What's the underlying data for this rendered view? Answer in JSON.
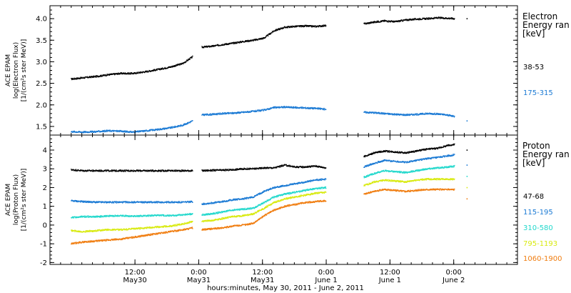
{
  "chart_data": [
    {
      "type": "scatter",
      "panel": "electron",
      "ylabel_lines": [
        "ACE EPAM",
        "log(Electron Flux)",
        "[1/(cm²s ster MeV)]"
      ],
      "yticks": [
        "1.5",
        "2.0",
        "2.5",
        "3.0",
        "3.5",
        "4.0"
      ],
      "ylim": [
        1.3,
        4.3
      ],
      "legend": {
        "title_lines": [
          "Electron",
          "Energy ran",
          "[keV]"
        ],
        "placement": "right"
      },
      "series": [
        {
          "name": "38-53",
          "color": "#000000",
          "segments": [
            {
              "x": [
                0,
                2.3,
                4.7,
                7.0,
                9.3,
                11.7,
                14.0,
                16.3,
                18.7,
                21.0,
                22.9
              ],
              "y": [
                2.6,
                2.63,
                2.66,
                2.7,
                2.73,
                2.73,
                2.77,
                2.82,
                2.88,
                2.96,
                3.12
              ]
            },
            {
              "x": [
                24.6,
                26.5,
                28.5,
                30.4,
                32.4,
                34.3,
                36.3,
                38.2,
                40.2,
                42.1,
                44.1,
                46.0,
                48.0
              ],
              "y": [
                3.34,
                3.36,
                3.4,
                3.43,
                3.47,
                3.5,
                3.55,
                3.72,
                3.8,
                3.82,
                3.83,
                3.82,
                3.84
              ]
            },
            {
              "x": [
                55.1,
                57.0,
                59.0,
                61.0,
                63.0,
                65.0,
                67.0,
                69.0,
                71.0,
                72.2
              ],
              "y": [
                3.88,
                3.92,
                3.95,
                3.93,
                3.97,
                3.99,
                4.0,
                4.02,
                4.01,
                4.0
              ]
            },
            {
              "x": [
                74.5
              ],
              "y": [
                4.0
              ]
            }
          ]
        },
        {
          "name": "175-315",
          "color": "#1b7ad4",
          "segments": [
            {
              "x": [
                0,
                2.3,
                4.7,
                7.0,
                9.3,
                11.7,
                14.0,
                16.3,
                18.7,
                21.0,
                22.9
              ],
              "y": [
                1.38,
                1.37,
                1.38,
                1.4,
                1.39,
                1.37,
                1.4,
                1.43,
                1.47,
                1.53,
                1.63
              ]
            },
            {
              "x": [
                24.6,
                26.5,
                28.5,
                30.4,
                32.4,
                34.3,
                36.3,
                38.2,
                40.2,
                42.1,
                44.1,
                46.0,
                48.0
              ],
              "y": [
                1.77,
                1.78,
                1.8,
                1.81,
                1.83,
                1.85,
                1.88,
                1.94,
                1.95,
                1.94,
                1.93,
                1.92,
                1.9
              ]
            },
            {
              "x": [
                55.1,
                57.0,
                59.0,
                61.0,
                63.0,
                65.0,
                67.0,
                69.0,
                71.0,
                72.2
              ],
              "y": [
                1.83,
                1.82,
                1.8,
                1.78,
                1.77,
                1.78,
                1.8,
                1.79,
                1.76,
                1.73
              ]
            },
            {
              "x": [
                74.5
              ],
              "y": [
                1.63
              ]
            }
          ]
        }
      ]
    },
    {
      "type": "scatter",
      "panel": "proton",
      "ylabel_lines": [
        "ACE EPAM",
        "log(Proton Flux)",
        "[1/(cm²s ster MeV)]"
      ],
      "yticks": [
        "-2",
        "-1",
        "0",
        "1",
        "2",
        "3",
        "4"
      ],
      "ylim": [
        -2.1,
        4.8
      ],
      "legend": {
        "title_lines": [
          "Proton",
          "Energy ran",
          "[keV]"
        ],
        "placement": "right"
      },
      "series": [
        {
          "name": "47-68",
          "color": "#000000",
          "segments": [
            {
              "x": [
                0,
                2.3,
                4.7,
                7.0,
                9.3,
                11.7,
                14.0,
                16.3,
                18.7,
                21.0,
                22.9
              ],
              "y": [
                2.95,
                2.9,
                2.9,
                2.9,
                2.9,
                2.9,
                2.9,
                2.9,
                2.9,
                2.9,
                2.9
              ]
            },
            {
              "x": [
                24.6,
                26.5,
                28.5,
                30.4,
                32.4,
                34.3,
                36.3,
                38.2,
                40.2,
                42.1,
                44.1,
                46.0,
                48.0
              ],
              "y": [
                2.9,
                2.92,
                2.93,
                2.95,
                3.0,
                3.0,
                3.05,
                3.05,
                3.2,
                3.1,
                3.1,
                3.15,
                3.05
              ]
            },
            {
              "x": [
                55.1,
                57.0,
                59.0,
                61.0,
                63.0,
                65.0,
                67.0,
                69.0,
                71.0,
                72.2
              ],
              "y": [
                3.65,
                3.85,
                3.95,
                3.9,
                3.85,
                3.95,
                4.05,
                4.1,
                4.25,
                4.3
              ]
            },
            {
              "x": [
                74.5
              ],
              "y": [
                4.0
              ]
            }
          ]
        },
        {
          "name": "115-195",
          "color": "#1b7ad4",
          "segments": [
            {
              "x": [
                0,
                2.3,
                4.7,
                7.0,
                9.3,
                11.7,
                14.0,
                16.3,
                18.7,
                21.0,
                22.9
              ],
              "y": [
                1.3,
                1.25,
                1.22,
                1.22,
                1.22,
                1.22,
                1.22,
                1.22,
                1.22,
                1.22,
                1.25
              ]
            },
            {
              "x": [
                24.6,
                26.5,
                28.5,
                30.4,
                32.4,
                34.3,
                36.3,
                38.2,
                40.2,
                42.1,
                44.1,
                46.0,
                48.0
              ],
              "y": [
                1.12,
                1.18,
                1.25,
                1.35,
                1.4,
                1.5,
                1.8,
                2.0,
                2.1,
                2.2,
                2.3,
                2.4,
                2.45
              ]
            },
            {
              "x": [
                55.1,
                57.0,
                59.0,
                61.0,
                63.0,
                65.0,
                67.0,
                69.0,
                71.0,
                72.2
              ],
              "y": [
                3.1,
                3.3,
                3.45,
                3.4,
                3.35,
                3.45,
                3.55,
                3.6,
                3.7,
                3.75
              ]
            },
            {
              "x": [
                74.5
              ],
              "y": [
                3.2
              ]
            }
          ]
        },
        {
          "name": "310-580",
          "color": "#22d8cc",
          "segments": [
            {
              "x": [
                0,
                2.3,
                4.7,
                7.0,
                9.3,
                11.7,
                14.0,
                16.3,
                18.7,
                21.0,
                22.9
              ],
              "y": [
                0.4,
                0.45,
                0.45,
                0.48,
                0.5,
                0.48,
                0.5,
                0.52,
                0.5,
                0.55,
                0.6
              ]
            },
            {
              "x": [
                24.6,
                26.5,
                28.5,
                30.4,
                32.4,
                34.3,
                36.3,
                38.2,
                40.2,
                42.1,
                44.1,
                46.0,
                48.0
              ],
              "y": [
                0.55,
                0.6,
                0.7,
                0.8,
                0.85,
                0.9,
                1.2,
                1.5,
                1.65,
                1.75,
                1.85,
                1.95,
                2.0
              ]
            },
            {
              "x": [
                55.1,
                57.0,
                59.0,
                61.0,
                63.0,
                65.0,
                67.0,
                69.0,
                71.0,
                72.2
              ],
              "y": [
                2.55,
                2.75,
                2.9,
                2.85,
                2.8,
                2.9,
                3.0,
                3.05,
                3.1,
                3.15
              ]
            },
            {
              "x": [
                74.5
              ],
              "y": [
                2.6
              ]
            }
          ]
        },
        {
          "name": "795-1193",
          "color": "#d8ea10",
          "segments": [
            {
              "x": [
                0,
                2.3,
                4.7,
                7.0,
                9.3,
                11.7,
                14.0,
                16.3,
                18.7,
                21.0,
                22.9
              ],
              "y": [
                -0.3,
                -0.35,
                -0.3,
                -0.25,
                -0.25,
                -0.2,
                -0.15,
                -0.1,
                -0.05,
                0.05,
                0.2
              ]
            },
            {
              "x": [
                24.6,
                26.5,
                28.5,
                30.4,
                32.4,
                34.3,
                36.3,
                38.2,
                40.2,
                42.1,
                44.1,
                46.0,
                48.0
              ],
              "y": [
                0.2,
                0.25,
                0.35,
                0.45,
                0.5,
                0.6,
                0.9,
                1.2,
                1.4,
                1.5,
                1.6,
                1.7,
                1.75
              ]
            },
            {
              "x": [
                55.1,
                57.0,
                59.0,
                61.0,
                63.0,
                65.0,
                67.0,
                69.0,
                71.0,
                72.2
              ],
              "y": [
                2.1,
                2.3,
                2.4,
                2.35,
                2.3,
                2.4,
                2.45,
                2.45,
                2.45,
                2.45
              ]
            },
            {
              "x": [
                74.5
              ],
              "y": [
                2.0
              ]
            }
          ]
        },
        {
          "name": "1060-1900",
          "color": "#f07d10",
          "segments": [
            {
              "x": [
                0,
                2.3,
                4.7,
                7.0,
                9.3,
                11.7,
                14.0,
                16.3,
                18.7,
                21.0,
                22.9
              ],
              "y": [
                -1.0,
                -0.9,
                -0.85,
                -0.8,
                -0.75,
                -0.65,
                -0.55,
                -0.45,
                -0.35,
                -0.25,
                -0.15
              ]
            },
            {
              "x": [
                24.6,
                26.5,
                28.5,
                30.4,
                32.4,
                34.3,
                36.3,
                38.2,
                40.2,
                42.1,
                44.1,
                46.0,
                48.0
              ],
              "y": [
                -0.25,
                -0.2,
                -0.15,
                -0.05,
                0.0,
                0.1,
                0.5,
                0.8,
                1.0,
                1.1,
                1.2,
                1.25,
                1.3
              ]
            },
            {
              "x": [
                55.1,
                57.0,
                59.0,
                61.0,
                63.0,
                65.0,
                67.0,
                69.0,
                71.0,
                72.2
              ],
              "y": [
                1.65,
                1.8,
                1.9,
                1.85,
                1.8,
                1.85,
                1.9,
                1.9,
                1.9,
                1.9
              ]
            },
            {
              "x": [
                74.5
              ],
              "y": [
                1.4
              ]
            }
          ]
        }
      ]
    }
  ],
  "x_axis": {
    "unit": "hours since 0:00 May 30, 2011",
    "xlim": [
      -4,
      84
    ],
    "major_ticks": [
      {
        "x": 12,
        "label": "12:00",
        "day": "May30"
      },
      {
        "x": 24,
        "label": "0:00",
        "day": "May31"
      },
      {
        "x": 36,
        "label": "12:00",
        "day": "May31"
      },
      {
        "x": 48,
        "label": "0:00",
        "day": "June 1"
      },
      {
        "x": 60,
        "label": "12:00",
        "day": "June 1"
      },
      {
        "x": 72,
        "label": "0:00",
        "day": "June 2"
      }
    ],
    "title": "hours:minutes, May 30, 2011 - June  2, 2011"
  }
}
